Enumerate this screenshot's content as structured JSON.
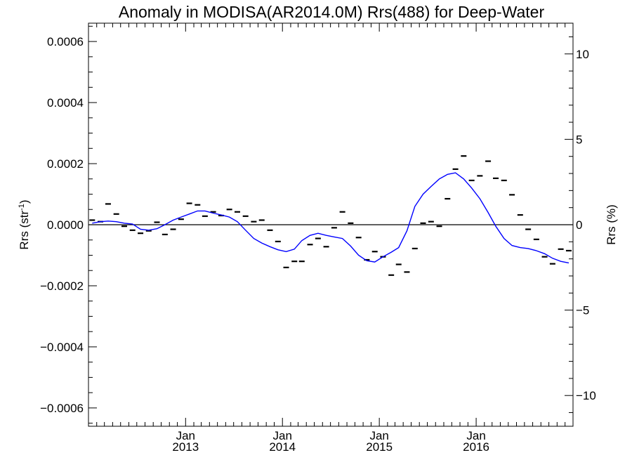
{
  "chart_data": {
    "type": "line",
    "title": "Anomaly in MODISA(AR2014.0M) Rrs(488) for Deep-Water",
    "ylabel_base": "Rrs (str",
    "ylabel_sup": "-1",
    "ylabel_close": ")",
    "y2label": "Rrs (%)",
    "xlim": [
      "2012-01-01",
      "2016-12-31"
    ],
    "ylim": [
      -0.00066,
      0.00066
    ],
    "y2lim": [
      -11.8,
      11.8
    ],
    "grid": false,
    "y_ticks": [
      "0.0006",
      "0.0004",
      "0.0002",
      "0.0000",
      "−0.0002",
      "−0.0004",
      "−0.0006"
    ],
    "y_tick_values": [
      0.0006,
      0.0004,
      0.0002,
      0.0,
      -0.0002,
      -0.0004,
      -0.0006
    ],
    "y2_ticks": [
      "10",
      "5",
      "0",
      "−5",
      "−10"
    ],
    "y2_tick_values": [
      10,
      5,
      0,
      -5,
      -10
    ],
    "x_ticks": [
      {
        "month": "Jan",
        "year": "2013",
        "date": "2013-01-01"
      },
      {
        "month": "Jan",
        "year": "2014",
        "date": "2014-01-01"
      },
      {
        "month": "Jan",
        "year": "2015",
        "date": "2015-01-01"
      },
      {
        "month": "Jan",
        "year": "2016",
        "date": "2016-01-01"
      }
    ],
    "series": [
      {
        "color": "#0000ff",
        "style": "line",
        "x": [
          "2012-01-15",
          "2012-02-15",
          "2012-03-15",
          "2012-04-15",
          "2012-05-15",
          "2012-06-15",
          "2012-07-15",
          "2012-08-15",
          "2012-09-15",
          "2012-10-15",
          "2012-11-15",
          "2012-12-15",
          "2013-01-15",
          "2013-02-15",
          "2013-03-15",
          "2013-04-15",
          "2013-05-15",
          "2013-06-15",
          "2013-07-15",
          "2013-08-15",
          "2013-09-15",
          "2013-10-15",
          "2013-11-15",
          "2013-12-15",
          "2014-01-15",
          "2014-02-15",
          "2014-03-15",
          "2014-04-15",
          "2014-05-15",
          "2014-06-15",
          "2014-07-15",
          "2014-08-15",
          "2014-09-15",
          "2014-10-15",
          "2014-11-15",
          "2014-12-15",
          "2015-01-15",
          "2015-02-15",
          "2015-03-15",
          "2015-04-15",
          "2015-05-15",
          "2015-06-15",
          "2015-07-15",
          "2015-08-15",
          "2015-09-15",
          "2015-10-15",
          "2015-11-15",
          "2015-12-15",
          "2016-01-15",
          "2016-02-15",
          "2016-03-15",
          "2016-04-15",
          "2016-05-15",
          "2016-06-15",
          "2016-07-15",
          "2016-08-15",
          "2016-09-15",
          "2016-10-15",
          "2016-11-15",
          "2016-12-15"
        ],
        "y": [
          5e-06,
          1e-05,
          1.2e-05,
          1e-05,
          5e-06,
          2e-06,
          -1.5e-05,
          -1.8e-05,
          -1.3e-05,
          0.0,
          1.5e-05,
          2.5e-05,
          3.5e-05,
          4.5e-05,
          4.5e-05,
          3.8e-05,
          3.2e-05,
          2.5e-05,
          1e-05,
          -1.8e-05,
          -4.5e-05,
          -6e-05,
          -7.2e-05,
          -8.2e-05,
          -8.8e-05,
          -8e-05,
          -5.2e-05,
          -3.5e-05,
          -2.8e-05,
          -3.5e-05,
          -4e-05,
          -4.5e-05,
          -7e-05,
          -0.0001,
          -0.000118,
          -0.000122,
          -0.000105,
          -9e-05,
          -7.5e-05,
          -2e-05,
          6e-05,
          0.0001,
          0.000125,
          0.00015,
          0.000165,
          0.00017,
          0.00015,
          0.00012,
          8.5e-05,
          4e-05,
          -5e-06,
          -4.5e-05,
          -6.8e-05,
          -7.5e-05,
          -7.8e-05,
          -8.5e-05,
          -9.5e-05,
          -0.00011,
          -0.00012,
          -0.000125
        ]
      },
      {
        "color": "#000000",
        "style": "marker",
        "x": [
          "2012-01-15",
          "2012-02-15",
          "2012-03-15",
          "2012-04-15",
          "2012-05-15",
          "2012-06-15",
          "2012-07-15",
          "2012-08-15",
          "2012-09-15",
          "2012-10-15",
          "2012-11-15",
          "2012-12-15",
          "2013-01-15",
          "2013-02-15",
          "2013-03-15",
          "2013-04-15",
          "2013-05-15",
          "2013-06-15",
          "2013-07-15",
          "2013-08-15",
          "2013-09-15",
          "2013-10-15",
          "2013-11-15",
          "2013-12-15",
          "2014-01-15",
          "2014-02-15",
          "2014-03-15",
          "2014-04-15",
          "2014-05-15",
          "2014-06-15",
          "2014-07-15",
          "2014-08-15",
          "2014-09-15",
          "2014-10-15",
          "2014-11-15",
          "2014-12-15",
          "2015-01-15",
          "2015-02-15",
          "2015-03-15",
          "2015-04-15",
          "2015-05-15",
          "2015-06-15",
          "2015-07-15",
          "2015-08-15",
          "2015-09-15",
          "2015-10-15",
          "2015-11-15",
          "2015-12-15",
          "2016-01-15",
          "2016-02-15",
          "2016-03-15",
          "2016-04-15",
          "2016-05-15",
          "2016-06-15",
          "2016-07-15",
          "2016-08-15",
          "2016-09-15",
          "2016-10-15",
          "2016-11-15",
          "2016-12-15"
        ],
        "y": [
          1.5e-05,
          1e-05,
          6.8e-05,
          3.5e-05,
          -5e-06,
          -1.8e-05,
          -2.8e-05,
          -2e-05,
          8e-06,
          -3.2e-05,
          -1.5e-05,
          1.8e-05,
          7e-05,
          6.5e-05,
          2.8e-05,
          4.2e-05,
          3e-05,
          5e-05,
          4.2e-05,
          2.8e-05,
          1e-05,
          1.5e-05,
          -1.8e-05,
          -5.5e-05,
          -0.00014,
          -0.00012,
          -0.00012,
          -6.5e-05,
          -4.5e-05,
          -7.2e-05,
          -1e-05,
          4.2e-05,
          5e-06,
          -4.2e-05,
          -0.000115,
          -8.8e-05,
          -0.000105,
          -0.000165,
          -0.00013,
          -0.000155,
          -7.8e-05,
          5e-06,
          1e-05,
          -5e-06,
          8.5e-05,
          0.000182,
          0.000225,
          0.000145,
          0.00016,
          0.000208,
          0.000152,
          0.000145,
          9.8e-05,
          3.2e-05,
          -1.5e-05,
          -4.8e-05,
          -0.000105,
          -0.000128,
          -8e-05,
          -8.5e-05
        ]
      }
    ]
  }
}
